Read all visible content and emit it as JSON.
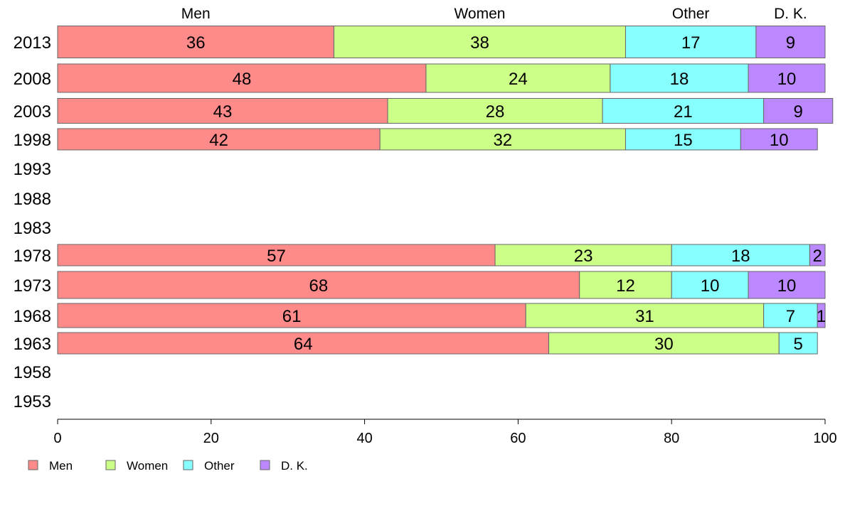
{
  "chart_data": {
    "type": "bar",
    "orientation": "horizontal",
    "stacked": true,
    "categories": [
      "2013",
      "2008",
      "2003",
      "1998",
      "1993",
      "1988",
      "1983",
      "1978",
      "1973",
      "1968",
      "1963",
      "1958",
      "1953"
    ],
    "series": [
      {
        "name": "Men",
        "color": "#ff8a8a",
        "values": [
          36,
          48,
          43,
          42,
          null,
          null,
          null,
          57,
          68,
          61,
          64,
          null,
          null
        ]
      },
      {
        "name": "Women",
        "color": "#ccff88",
        "values": [
          38,
          24,
          28,
          32,
          null,
          null,
          null,
          23,
          12,
          31,
          30,
          null,
          null
        ]
      },
      {
        "name": "Other",
        "color": "#88ffff",
        "values": [
          17,
          18,
          21,
          15,
          null,
          null,
          null,
          18,
          10,
          7,
          5,
          null,
          null
        ]
      },
      {
        "name": "D. K.",
        "color": "#bb88ff",
        "values": [
          9,
          10,
          9,
          10,
          null,
          null,
          null,
          2,
          10,
          1,
          0,
          null,
          null
        ]
      }
    ],
    "xlim": [
      0,
      100
    ],
    "xticks": [
      "0",
      "20",
      "40",
      "60",
      "80",
      "100"
    ],
    "column_headers": [
      "Men",
      "Women",
      "Other",
      "D. K."
    ],
    "legend": {
      "position": "bottom-left",
      "entries": [
        "Men",
        "Women",
        "Other",
        "D. K."
      ]
    },
    "grid": false
  }
}
